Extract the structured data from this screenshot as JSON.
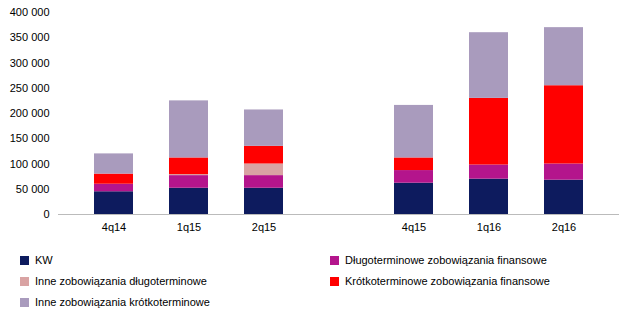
{
  "chart_data": {
    "type": "bar",
    "stacked": true,
    "categories": [
      "4q14",
      "1q15",
      "2q15",
      null,
      "4q15",
      "1q16",
      "2q16"
    ],
    "series": [
      {
        "name": "KW",
        "color": "#0d1b5e",
        "values": [
          45000,
          52000,
          52000,
          null,
          62000,
          70000,
          68000
        ]
      },
      {
        "name": "Długoterminowe zobowiązania finansowe",
        "color": "#b4158c",
        "values": [
          15000,
          25000,
          25000,
          null,
          25000,
          28000,
          32000
        ]
      },
      {
        "name": "Inne zobowiązania długoterminowe",
        "color": "#d9a3a3",
        "values": [
          0,
          2000,
          23000,
          null,
          0,
          0,
          0
        ]
      },
      {
        "name": "Krótkoterminowe zobowiązania finansowe",
        "color": "#ff0000",
        "values": [
          20000,
          33000,
          35000,
          null,
          25000,
          132000,
          155000
        ]
      },
      {
        "name": "Inne zobowiązania krótkoterminowe",
        "color": "#a99bbd",
        "values": [
          40000,
          113000,
          72000,
          null,
          104000,
          130000,
          115000
        ]
      }
    ],
    "ylim": [
      0,
      400000
    ],
    "yticks": [
      0,
      {
        "value": 50000,
        "label": "50 000"
      },
      {
        "value": 100000,
        "label": "100 000"
      },
      {
        "value": 150000,
        "label": "150 000"
      },
      {
        "value": 200000,
        "label": "200 000"
      },
      {
        "value": 250000,
        "label": "250 000"
      },
      {
        "value": 300000,
        "label": "300 000"
      },
      {
        "value": 350000,
        "label": "350 000"
      },
      {
        "value": 400000,
        "label": "400 000"
      }
    ],
    "grid": false,
    "legend": "bottom"
  }
}
